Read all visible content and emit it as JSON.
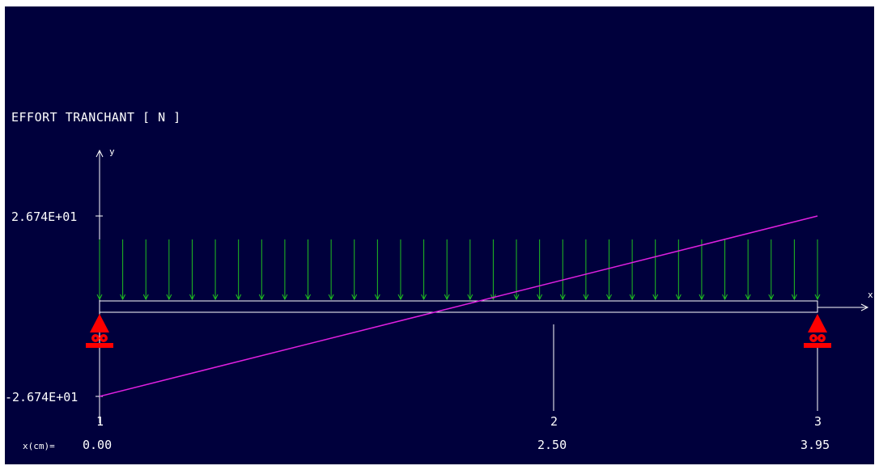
{
  "chart_data": {
    "type": "line",
    "title": "EFFORT TRANCHANT [ N ]",
    "axis": {
      "y_label": "y",
      "x_label": "x"
    },
    "y_ticks": [
      "2.674E+01",
      "-2.674E+01"
    ],
    "ylim": [
      -26.74,
      26.74
    ],
    "x_prefix": "x(cm)=",
    "nodes": [
      {
        "id": "1",
        "x": "0.00"
      },
      {
        "id": "2",
        "x": "2.50"
      },
      {
        "id": "3",
        "x": "3.95"
      }
    ],
    "series": [
      {
        "color": "#e020e0",
        "x": [
          0.0,
          3.95
        ],
        "y": [
          -26.74,
          26.74
        ]
      }
    ],
    "load": {
      "type": "distributed",
      "color": "#20c020",
      "arrow_count": 32
    },
    "supports": [
      {
        "node": "1",
        "type": "pinned"
      },
      {
        "node": "3",
        "type": "pinned"
      }
    ],
    "colors": {
      "background": "#00003c",
      "beam": "#ffffff",
      "support": "#ff0000"
    }
  }
}
